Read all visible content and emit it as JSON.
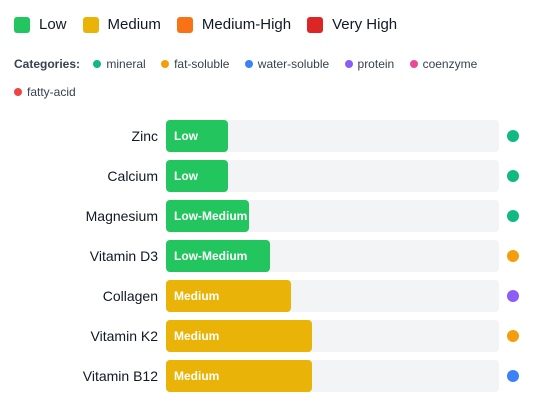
{
  "legend": [
    {
      "label": "Low",
      "color": "#22c55e"
    },
    {
      "label": "Medium",
      "color": "#eab308"
    },
    {
      "label": "Medium-High",
      "color": "#f97316"
    },
    {
      "label": "Very High",
      "color": "#dc2626"
    }
  ],
  "categories": {
    "heading": "Categories:",
    "items": [
      {
        "label": "mineral",
        "color": "#10b981"
      },
      {
        "label": "fat-soluble",
        "color": "#f59e0b"
      },
      {
        "label": "water-soluble",
        "color": "#3b82f6"
      },
      {
        "label": "protein",
        "color": "#8b5cf6"
      },
      {
        "label": "coenzyme",
        "color": "#ec4899"
      },
      {
        "label": "fatty-acid",
        "color": "#ef4444"
      }
    ]
  },
  "chart_data": {
    "type": "bar",
    "orientation": "horizontal",
    "scale_max": 16,
    "categories": [
      "Zinc",
      "Calcium",
      "Magnesium",
      "Vitamin D3",
      "Collagen",
      "Vitamin K2",
      "Vitamin B12"
    ],
    "values": [
      3,
      3,
      4,
      5,
      6,
      7,
      7
    ],
    "level_labels": [
      "Low",
      "Low",
      "Low-Medium",
      "Low-Medium",
      "Medium",
      "Medium",
      "Medium"
    ],
    "bar_colors": [
      "#22c55e",
      "#22c55e",
      "#22c55e",
      "#22c55e",
      "#eab308",
      "#eab308",
      "#eab308"
    ],
    "category_colors": [
      "#10b981",
      "#10b981",
      "#10b981",
      "#f59e0b",
      "#8b5cf6",
      "#f59e0b",
      "#3b82f6"
    ]
  }
}
